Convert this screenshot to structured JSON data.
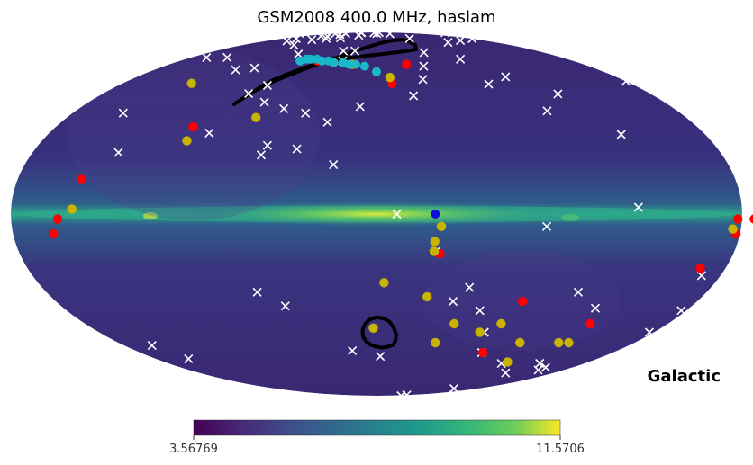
{
  "chart_data": {
    "type": "sky-map",
    "title": "GSM2008 400.0 MHz, haslam",
    "coordinate_label": "Galactic",
    "projection": "mollweide",
    "colormap": "viridis",
    "colorbar": {
      "min_label": "3.56769",
      "max_label": "11.5706",
      "min": 3.56769,
      "max": 11.5706
    },
    "colors": {
      "background_map": "#3b2a78",
      "plane": "#2ea88a",
      "contour": "#000000",
      "white_marker": "#ffffff",
      "red_marker": "#ff0000",
      "yellow_marker": "#c8b400",
      "cyan_marker": "#18b8c8",
      "blue_marker": "#1010dd"
    },
    "contours": [
      {
        "name": "large-contour",
        "points": [
          [
            88.0,
            46.0
          ],
          [
            84.0,
            50.0
          ],
          [
            80.0,
            54.0
          ],
          [
            75.0,
            58.0
          ],
          [
            68.0,
            61.0
          ],
          [
            60.0,
            64.0
          ],
          [
            50.0,
            67.0
          ],
          [
            38.0,
            69.0
          ],
          [
            24.0,
            70.0
          ],
          [
            10.0,
            71.0
          ],
          [
            -5.0,
            72.0
          ],
          [
            -20.0,
            73.0
          ],
          [
            -34.0,
            74.0
          ],
          [
            -46.0,
            75.0
          ],
          [
            -52.0,
            78.0
          ],
          [
            -50.0,
            81.5
          ],
          [
            -45.0,
            82.0
          ],
          [
            -38.0,
            81.8
          ],
          [
            -30.0,
            81.5
          ],
          [
            -22.0,
            81.0
          ],
          [
            -14.0,
            80.3
          ],
          [
            -6.0,
            79.4
          ],
          [
            2.0,
            78.2
          ],
          [
            10.0,
            76.8
          ],
          [
            18.0,
            75.2
          ],
          [
            26.0,
            73.3
          ],
          [
            34.0,
            71.2
          ],
          [
            42.0,
            69.0
          ],
          [
            50.0,
            66.5
          ],
          [
            58.0,
            63.7
          ],
          [
            66.0,
            60.5
          ],
          [
            74.0,
            57.0
          ],
          [
            82.0,
            52.0
          ],
          [
            88.0,
            46.0
          ]
        ]
      },
      {
        "name": "small-contour",
        "points": [
          [
            -12.0,
            -56.0
          ],
          [
            -8.0,
            -57.0
          ],
          [
            -4.0,
            -57.5
          ],
          [
            0.0,
            -57.0
          ],
          [
            4.0,
            -56.0
          ],
          [
            7.0,
            -54.5
          ],
          [
            9.0,
            -52.0
          ],
          [
            9.0,
            -49.0
          ],
          [
            7.0,
            -46.0
          ],
          [
            4.0,
            -44.0
          ],
          [
            0.0,
            -43.0
          ],
          [
            -4.0,
            -43.5
          ],
          [
            -8.0,
            -45.0
          ],
          [
            -11.0,
            -48.0
          ],
          [
            -13.0,
            -51.0
          ],
          [
            -13.0,
            -54.0
          ],
          [
            -12.0,
            -56.0
          ]
        ]
      }
    ],
    "white_markers": [
      [
        58,
        28
      ],
      [
        76,
        55
      ],
      [
        96,
        83
      ],
      [
        114,
        117
      ],
      [
        129,
        132
      ],
      [
        150,
        161
      ],
      [
        171,
        190
      ],
      [
        145,
        70
      ],
      [
        18,
        91
      ],
      [
        37,
        74
      ],
      [
        24,
        106
      ],
      [
        60,
        24
      ],
      [
        31,
        112
      ],
      [
        10,
        45
      ],
      [
        135,
        25
      ],
      [
        113,
        82
      ],
      [
        81,
        72
      ],
      [
        49,
        86
      ],
      [
        -1,
        88
      ],
      [
        -24,
        50
      ],
      [
        -34,
        58
      ],
      [
        -40,
        65
      ],
      [
        -51,
        73
      ],
      [
        -63,
        83
      ],
      [
        -79,
        111
      ],
      [
        -92,
        127
      ],
      [
        -102,
        137
      ],
      [
        -119,
        156
      ],
      [
        -138,
        176
      ],
      [
        -151,
        183
      ],
      [
        -170,
        205
      ],
      [
        -177,
        230
      ],
      [
        -166,
        248
      ],
      [
        -155,
        271
      ],
      [
        -140,
        272
      ],
      [
        -141,
        292
      ],
      [
        -171,
        278
      ],
      [
        -153,
        302
      ],
      [
        -137,
        336
      ],
      [
        -177,
        320
      ],
      [
        -160,
        299
      ],
      [
        -108,
        294
      ],
      [
        -131,
        262
      ],
      [
        -107,
        267
      ],
      [
        -134,
        237
      ],
      [
        -126,
        219
      ],
      [
        -110,
        212
      ],
      [
        -84,
        185
      ],
      [
        -72,
        196
      ],
      [
        -55,
        190
      ],
      [
        -43,
        216
      ],
      [
        -27,
        238
      ],
      [
        -3,
        242
      ],
      [
        18,
        239
      ],
      [
        42,
        223
      ],
      [
        52,
        218
      ],
      [
        65,
        212
      ],
      [
        79,
        203
      ],
      [
        97,
        177
      ],
      [
        118,
        188
      ],
      [
        135,
        168
      ],
      [
        155,
        158
      ],
      [
        180,
        183
      ],
      [
        206,
        210
      ],
      [
        230,
        225
      ],
      [
        258,
        247
      ],
      [
        284,
        271
      ],
      [
        300,
        286
      ],
      [
        321,
        305
      ],
      [
        357,
        316
      ],
      [
        362,
        332
      ],
      [
        361,
        361
      ],
      [
        383,
        362
      ],
      [
        407,
        383
      ],
      [
        415,
        367
      ],
      [
        423,
        359
      ],
      [
        444,
        372
      ],
      [
        455,
        381
      ],
      [
        472,
        390
      ],
      [
        498,
        367
      ],
      [
        504,
        352
      ],
      [
        523,
        368
      ],
      [
        540,
        374
      ],
      [
        571,
        365
      ],
      [
        586,
        356
      ],
      [
        594,
        362
      ],
      [
        603,
        397
      ],
      [
        607,
        390
      ],
      [
        631,
        365
      ],
      [
        652,
        373
      ],
      [
        668,
        353
      ],
      [
        690,
        321
      ],
      [
        710,
        330
      ],
      [
        703,
        311
      ],
      [
        739,
        324
      ],
      [
        759,
        312
      ],
      [
        764,
        300
      ],
      [
        756,
        292
      ],
      [
        746,
        279
      ],
      [
        728,
        265
      ],
      [
        716,
        250
      ],
      [
        690,
        247
      ],
      [
        716,
        223
      ],
      [
        746,
        210
      ],
      [
        748,
        201
      ],
      [
        733,
        188
      ],
      [
        710,
        178
      ],
      [
        693,
        171
      ],
      [
        672,
        144
      ],
      [
        656,
        122
      ],
      [
        633,
        121
      ],
      [
        617,
        109
      ],
      [
        600,
        96
      ],
      [
        594,
        80
      ],
      [
        623,
        65
      ],
      [
        646,
        56
      ],
      [
        652,
        67
      ],
      [
        636,
        82
      ],
      [
        680,
        108
      ],
      [
        700,
        129
      ],
      [
        678,
        155
      ],
      [
        659,
        170
      ],
      [
        637,
        176
      ],
      [
        624,
        202
      ],
      [
        617,
        219
      ],
      [
        606,
        235
      ],
      [
        591,
        249
      ],
      [
        565,
        257
      ],
      [
        543,
        271
      ],
      [
        548,
        286
      ],
      [
        522,
        294
      ],
      [
        496,
        299
      ],
      [
        483,
        303
      ],
      [
        454,
        285
      ],
      [
        437,
        269
      ],
      [
        420,
        266
      ],
      [
        416,
        261
      ],
      [
        399,
        254
      ],
      [
        380,
        258
      ],
      [
        370,
        250
      ],
      [
        369,
        244
      ],
      [
        361,
        241
      ],
      [
        338,
        223
      ],
      [
        324,
        212
      ],
      [
        311,
        191
      ],
      [
        299,
        182
      ],
      [
        289,
        170
      ],
      [
        271,
        154
      ],
      [
        251,
        141
      ],
      [
        237,
        133
      ],
      [
        224,
        131
      ],
      [
        195,
        125
      ],
      [
        180,
        113
      ],
      [
        165,
        110
      ],
      [
        145,
        99
      ],
      [
        134,
        88
      ],
      [
        117,
        85
      ],
      [
        111,
        78
      ],
      [
        101,
        64
      ],
      [
        84,
        51
      ],
      [
        70,
        47
      ],
      [
        56,
        44
      ],
      [
        42,
        42
      ],
      [
        28,
        38
      ],
      [
        22,
        20
      ],
      [
        -10,
        0
      ],
      [
        -30,
        -15
      ],
      [
        -50,
        -30
      ],
      [
        -60,
        -40
      ],
      [
        -70,
        -50
      ],
      [
        -80,
        -60
      ]
    ],
    "red_markers": [
      [
        -26,
        66
      ],
      [
        -178,
        -2
      ],
      [
        -186,
        -2
      ],
      [
        -178,
        -8
      ],
      [
        -167,
        -22
      ],
      [
        -132,
        -46
      ],
      [
        -81,
        -60
      ],
      [
        -11,
        56
      ],
      [
        54,
        68
      ],
      [
        103,
        36
      ],
      [
        148,
        14
      ],
      [
        157,
        -2
      ],
      [
        160,
        -8
      ],
      [
        -32,
        -16
      ],
      [
        -82,
        -36
      ]
    ],
    "yellow_markers": [
      [
        -134,
        -55
      ],
      [
        -127,
        -55
      ],
      [
        -41,
        -55
      ],
      [
        2,
        -48
      ],
      [
        -32,
        -5
      ],
      [
        -67,
        -50
      ],
      [
        -176,
        -6
      ],
      [
        -111,
        -65
      ],
      [
        -29,
        -11
      ],
      [
        -29,
        -15
      ],
      [
        -4,
        -28
      ],
      [
        -28,
        -34
      ],
      [
        -48,
        -46
      ],
      [
        -77,
        -46
      ],
      [
        -100,
        -55
      ],
      [
        21,
        66
      ],
      [
        -10,
        59
      ],
      [
        70,
        40
      ],
      [
        102,
        30
      ],
      [
        150,
        2
      ],
      [
        131,
        56
      ]
    ],
    "cyan_markers": [
      [
        0,
        62
      ],
      [
        10,
        65
      ],
      [
        18,
        66
      ],
      [
        24,
        66
      ],
      [
        30,
        67
      ],
      [
        38,
        67
      ],
      [
        44,
        68
      ],
      [
        50,
        68
      ],
      [
        56,
        69
      ],
      [
        62,
        69
      ],
      [
        66,
        69
      ],
      [
        70,
        68
      ]
    ],
    "blue_markers": [
      [
        -29,
        0
      ]
    ]
  }
}
